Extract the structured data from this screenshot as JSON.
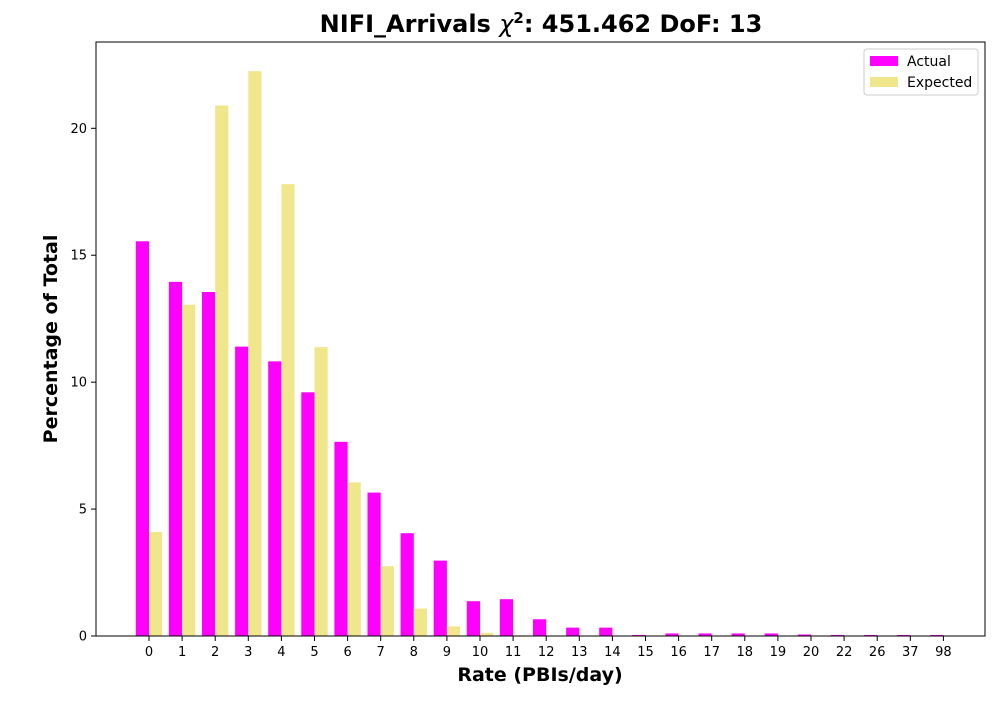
{
  "chart_data": {
    "type": "bar",
    "title": {
      "prefix": "NIFI_Arrivals ",
      "chi": "χ",
      "exp": "2",
      "suffix": ": 451.462 DoF: 13"
    },
    "xlabel": "Rate (PBIs/day)",
    "ylabel": "Percentage of Total",
    "ylim": [
      0,
      23.4
    ],
    "yticks": [
      0,
      5,
      10,
      15,
      20
    ],
    "categories": [
      "0",
      "1",
      "2",
      "3",
      "4",
      "5",
      "6",
      "7",
      "8",
      "9",
      "10",
      "11",
      "12",
      "13",
      "14",
      "15",
      "16",
      "17",
      "18",
      "19",
      "20",
      "22",
      "26",
      "37",
      "98"
    ],
    "series": [
      {
        "name": "Actual",
        "color": "#ff00ff",
        "values": [
          15.55,
          13.95,
          13.55,
          11.4,
          10.82,
          9.6,
          7.65,
          5.65,
          4.05,
          2.97,
          1.37,
          1.45,
          0.66,
          0.33,
          0.33,
          0.04,
          0.1,
          0.1,
          0.1,
          0.1,
          0.06,
          0.04,
          0.04,
          0.04,
          0.04
        ]
      },
      {
        "name": "Expected",
        "color": "#f0e68c",
        "values": [
          4.1,
          13.05,
          20.9,
          22.25,
          17.8,
          11.38,
          6.05,
          2.75,
          1.08,
          0.38,
          0.12,
          0.03,
          0.01,
          0.0,
          0.0,
          0.0,
          0.0,
          0.0,
          0.0,
          0.0,
          0.0,
          0.0,
          0.0,
          0.0,
          0.0
        ]
      }
    ],
    "legend_position": "top-right",
    "grid": false
  }
}
